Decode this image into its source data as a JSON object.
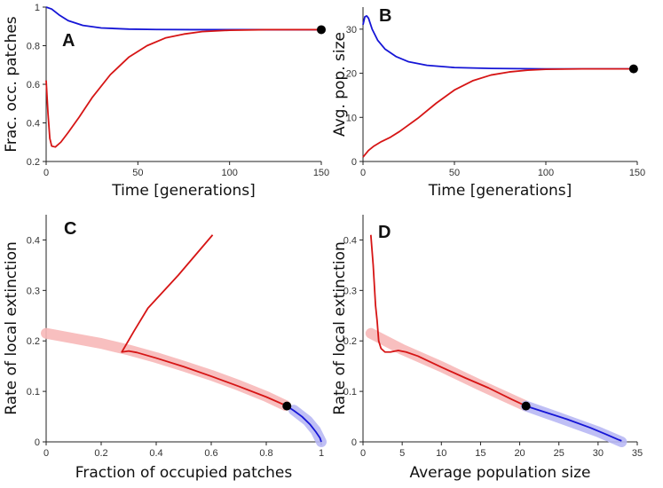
{
  "chart_data": [
    {
      "panel": "A",
      "type": "line",
      "xlabel": "Time [generations]",
      "ylabel": "Frac. occ. patches",
      "xlim": [
        0,
        150
      ],
      "ylim": [
        0.2,
        1
      ],
      "xticks": [
        "0",
        "50",
        "100",
        "150"
      ],
      "yticks": [
        "0.2",
        "0.4",
        "0.6",
        "0.8",
        "1"
      ],
      "colors": {
        "blue": "#1515d6",
        "red": "#d61515"
      },
      "series": [
        {
          "name": "blue",
          "x": [
            0,
            3,
            7,
            12,
            20,
            30,
            45,
            60,
            80,
            100,
            150
          ],
          "y": [
            1.0,
            0.99,
            0.96,
            0.93,
            0.905,
            0.892,
            0.886,
            0.884,
            0.883,
            0.883,
            0.883
          ]
        },
        {
          "name": "red",
          "x": [
            0,
            1,
            2,
            3,
            5,
            8,
            12,
            18,
            25,
            35,
            45,
            55,
            65,
            75,
            85,
            100,
            120,
            150
          ],
          "y": [
            0.62,
            0.45,
            0.32,
            0.28,
            0.275,
            0.3,
            0.35,
            0.43,
            0.53,
            0.65,
            0.74,
            0.8,
            0.84,
            0.86,
            0.873,
            0.88,
            0.883,
            0.883
          ]
        }
      ],
      "endpoint": {
        "x": 150,
        "y": 0.883
      }
    },
    {
      "panel": "B",
      "type": "line",
      "xlabel": "Time [generations]",
      "ylabel": "Avg. pop. size",
      "xlim": [
        0,
        150
      ],
      "ylim": [
        0,
        35
      ],
      "xticks": [
        "0",
        "50",
        "100",
        "150"
      ],
      "yticks": [
        "0",
        "10",
        "20",
        "30"
      ],
      "colors": {
        "blue": "#1515d6",
        "red": "#d61515"
      },
      "series": [
        {
          "name": "blue",
          "x": [
            0,
            1,
            2,
            3,
            5,
            8,
            12,
            18,
            25,
            35,
            50,
            70,
            100,
            150
          ],
          "y": [
            31,
            32.8,
            33,
            32.5,
            30,
            27.5,
            25.5,
            23.8,
            22.6,
            21.8,
            21.3,
            21.1,
            21.0,
            21.0
          ]
        },
        {
          "name": "red",
          "x": [
            0,
            3,
            6,
            10,
            15,
            20,
            30,
            40,
            50,
            60,
            70,
            80,
            90,
            100,
            120,
            150
          ],
          "y": [
            1,
            2.5,
            3.5,
            4.5,
            5.5,
            6.8,
            9.8,
            13.2,
            16.2,
            18.3,
            19.6,
            20.3,
            20.7,
            20.9,
            21.0,
            21.0
          ]
        }
      ],
      "endpoint": {
        "x": 148,
        "y": 21.0
      }
    },
    {
      "panel": "C",
      "type": "line",
      "xlabel": "Fraction of occupied patches",
      "ylabel": "Rate of local extinction",
      "xlim": [
        0,
        1
      ],
      "ylim": [
        0,
        0.45
      ],
      "xticks": [
        "0",
        "0.2",
        "0.4",
        "0.6",
        "0.8",
        "1"
      ],
      "yticks": [
        "0",
        "0.1",
        "0.2",
        "0.3",
        "0.4"
      ],
      "colors": {
        "blue": "#1515d6",
        "red": "#d61515",
        "red_band": "#f7b8b8",
        "blue_band": "#b8b8f4"
      },
      "band": {
        "x": [
          0,
          0.1,
          0.2,
          0.3,
          0.4,
          0.5,
          0.6,
          0.7,
          0.8,
          0.87,
          0.9,
          0.95,
          0.98,
          1.0
        ],
        "y": [
          0.215,
          0.205,
          0.195,
          0.182,
          0.167,
          0.15,
          0.132,
          0.112,
          0.09,
          0.072,
          0.063,
          0.042,
          0.022,
          0.0
        ]
      },
      "series": [
        {
          "name": "red",
          "x": [
            0.605,
            0.48,
            0.37,
            0.32,
            0.275,
            0.3,
            0.33,
            0.4,
            0.5,
            0.6,
            0.7,
            0.8,
            0.875
          ],
          "y": [
            0.41,
            0.33,
            0.265,
            0.22,
            0.178,
            0.18,
            0.177,
            0.166,
            0.149,
            0.13,
            0.11,
            0.089,
            0.071
          ]
        },
        {
          "name": "blue",
          "x": [
            0.875,
            0.9,
            0.93,
            0.96,
            0.98,
            0.995,
            1.0
          ],
          "y": [
            0.071,
            0.062,
            0.05,
            0.034,
            0.02,
            0.008,
            0.0
          ]
        }
      ],
      "endpoint": {
        "x": 0.875,
        "y": 0.071
      }
    },
    {
      "panel": "D",
      "type": "line",
      "xlabel": "Average population size",
      "ylabel": "Rate of local extinction",
      "xlim": [
        0,
        35
      ],
      "ylim": [
        0,
        0.45
      ],
      "xticks": [
        "0",
        "5",
        "10",
        "15",
        "20",
        "25",
        "30",
        "35"
      ],
      "yticks": [
        "0",
        "0.1",
        "0.2",
        "0.3",
        "0.4"
      ],
      "colors": {
        "blue": "#1515d6",
        "red": "#d61515",
        "red_band": "#f7b8b8",
        "blue_band": "#b8b8f4"
      },
      "band": {
        "x": [
          1,
          5,
          10,
          15,
          20.8,
          25,
          30,
          33
        ],
        "y": [
          0.215,
          0.183,
          0.149,
          0.112,
          0.071,
          0.048,
          0.02,
          0.0
        ]
      },
      "series": [
        {
          "name": "red",
          "x": [
            1.0,
            1.3,
            1.6,
            1.8,
            2.0,
            2.3,
            2.8,
            3.5,
            4.5,
            5.5,
            7,
            10,
            13,
            16,
            19,
            20.8
          ],
          "y": [
            0.41,
            0.35,
            0.27,
            0.24,
            0.2,
            0.185,
            0.178,
            0.178,
            0.181,
            0.178,
            0.17,
            0.148,
            0.127,
            0.107,
            0.084,
            0.071
          ]
        },
        {
          "name": "blue",
          "x": [
            20.8,
            23,
            26,
            29,
            31,
            32.5,
            33
          ],
          "y": [
            0.071,
            0.06,
            0.045,
            0.028,
            0.015,
            0.005,
            0.002
          ]
        }
      ],
      "endpoint": {
        "x": 20.8,
        "y": 0.071
      }
    }
  ]
}
